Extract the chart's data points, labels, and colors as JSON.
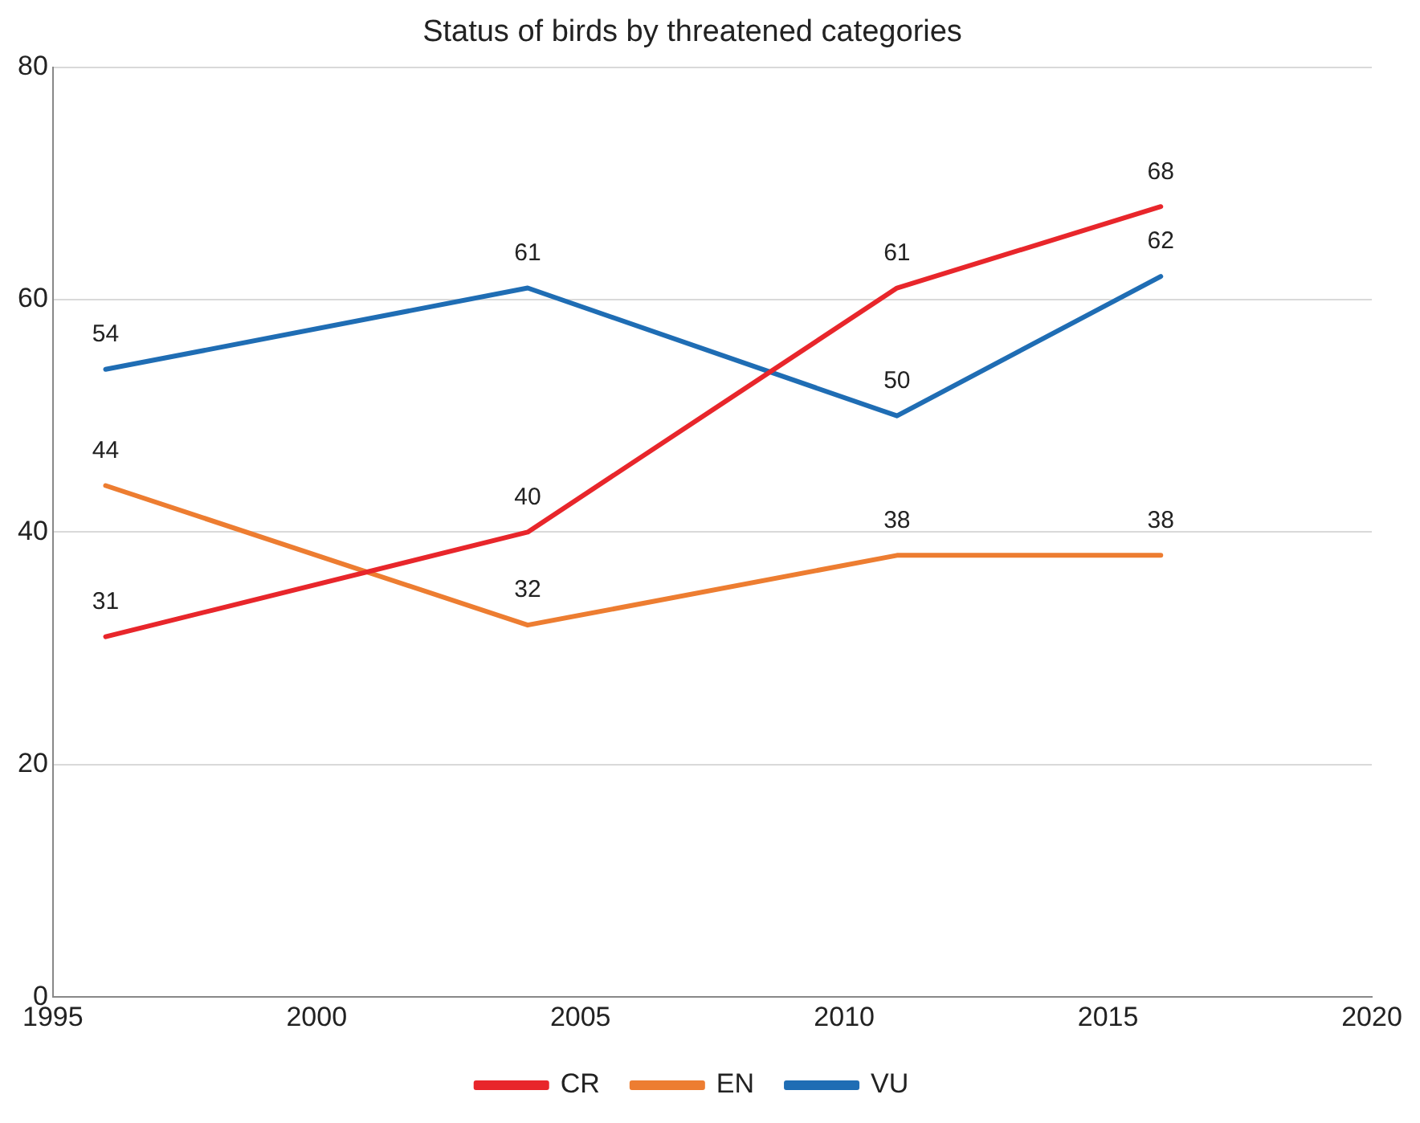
{
  "chart_data": {
    "type": "line",
    "title": "Status of birds by threatened categories",
    "x": [
      1996,
      2004,
      2011,
      2016
    ],
    "series": [
      {
        "name": "CR",
        "color": "#e8262b",
        "values": [
          31,
          40,
          61,
          68
        ]
      },
      {
        "name": "EN",
        "color": "#ed7d31",
        "values": [
          44,
          32,
          38,
          38
        ]
      },
      {
        "name": "VU",
        "color": "#1f6db4",
        "values": [
          54,
          61,
          50,
          62
        ]
      }
    ],
    "xlim": [
      1995,
      2020
    ],
    "xticks": [
      1995,
      2000,
      2005,
      2010,
      2015,
      2020
    ],
    "ylim": [
      0,
      80
    ],
    "yticks": [
      0,
      20,
      40,
      60,
      80
    ],
    "grid": "y",
    "legend": "bottom",
    "data_labels": true,
    "marker": "none",
    "line_style": "solid"
  }
}
